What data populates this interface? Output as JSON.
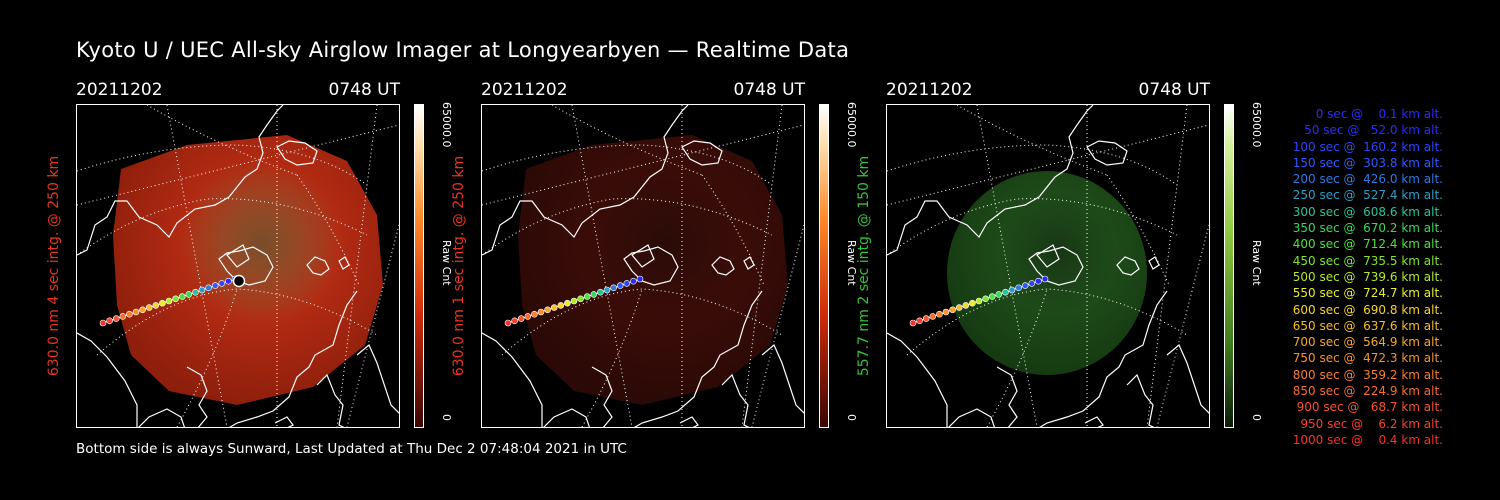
{
  "header": {
    "title": "Kyoto U / UEC All-sky Airglow Imager at Longyearbyen — Realtime Data"
  },
  "footer": {
    "text": "Bottom side is always Sunward, Last Updated at Thu Dec  2 07:48:04 2021 in UTC"
  },
  "panels": [
    {
      "date": "20211202",
      "time": "0748 UT",
      "ylabel": "630.0 nm 4 sec intg. @ 250 km",
      "label_color": "#e8341c",
      "cbar_max": "65000.0",
      "cbar_label": "Raw Cnt",
      "cbar_min": "0"
    },
    {
      "date": "20211202",
      "time": "0748 UT",
      "ylabel": "630.0 nm 1 sec intg. @ 250 km",
      "label_color": "#e8341c",
      "cbar_max": "65000.0",
      "cbar_label": "Raw Cnt",
      "cbar_min": "0"
    },
    {
      "date": "20211202",
      "time": "0748 UT",
      "ylabel": "557.7 nm 2 sec intg. @ 150 km",
      "label_color": "#35c23a",
      "cbar_max": "65000.0",
      "cbar_label": "Raw Cnt",
      "cbar_min": "0"
    }
  ],
  "legend": [
    {
      "text": "0 sec @    0.1 km alt.",
      "color": "#2a2aff"
    },
    {
      "text": "50 sec @   52.0 km alt.",
      "color": "#2a2aff"
    },
    {
      "text": "100 sec @  160.2 km alt.",
      "color": "#2b46ff"
    },
    {
      "text": "150 sec @  303.8 km alt.",
      "color": "#2a5aff"
    },
    {
      "text": "200 sec @  426.0 km alt.",
      "color": "#2a7ae8"
    },
    {
      "text": "250 sec @  527.4 km alt.",
      "color": "#2a9ec8"
    },
    {
      "text": "300 sec @  608.6 km alt.",
      "color": "#2ac29a"
    },
    {
      "text": "350 sec @  670.2 km alt.",
      "color": "#3ad85a"
    },
    {
      "text": "400 sec @  712.4 km alt.",
      "color": "#4ee03c"
    },
    {
      "text": "450 sec @  735.5 km alt.",
      "color": "#7ee62e"
    },
    {
      "text": "500 sec @  739.6 km alt.",
      "color": "#b4ea2a"
    },
    {
      "text": "550 sec @  724.7 km alt.",
      "color": "#e6ee2a"
    },
    {
      "text": "600 sec @  690.8 km alt.",
      "color": "#f8d42a"
    },
    {
      "text": "650 sec @  637.6 km alt.",
      "color": "#f8bc2a"
    },
    {
      "text": "700 sec @  564.9 km alt.",
      "color": "#f8a62a"
    },
    {
      "text": "750 sec @  472.3 km alt.",
      "color": "#f8922a"
    },
    {
      "text": "800 sec @  359.2 km alt.",
      "color": "#f87e2a"
    },
    {
      "text": "850 sec @  224.9 km alt.",
      "color": "#f86a2a"
    },
    {
      "text": "900 sec @   68.7 km alt.",
      "color": "#f8522a"
    },
    {
      "text": "950 sec @    6.2 km alt.",
      "color": "#f8402a"
    },
    {
      "text": "1000 sec @    0.4 km alt.",
      "color": "#f8302a"
    }
  ],
  "images": [
    {
      "glow": "#b12a12",
      "glow_edge": "#8e1f0c",
      "highlight": "#d98a4a"
    },
    {
      "glow": "#3a0c08",
      "glow_edge": "#2a0906",
      "highlight": "#4a140c"
    },
    {
      "glow": "#1d4a18",
      "glow_edge": "#163a12",
      "highlight": "#2a6024"
    }
  ]
}
